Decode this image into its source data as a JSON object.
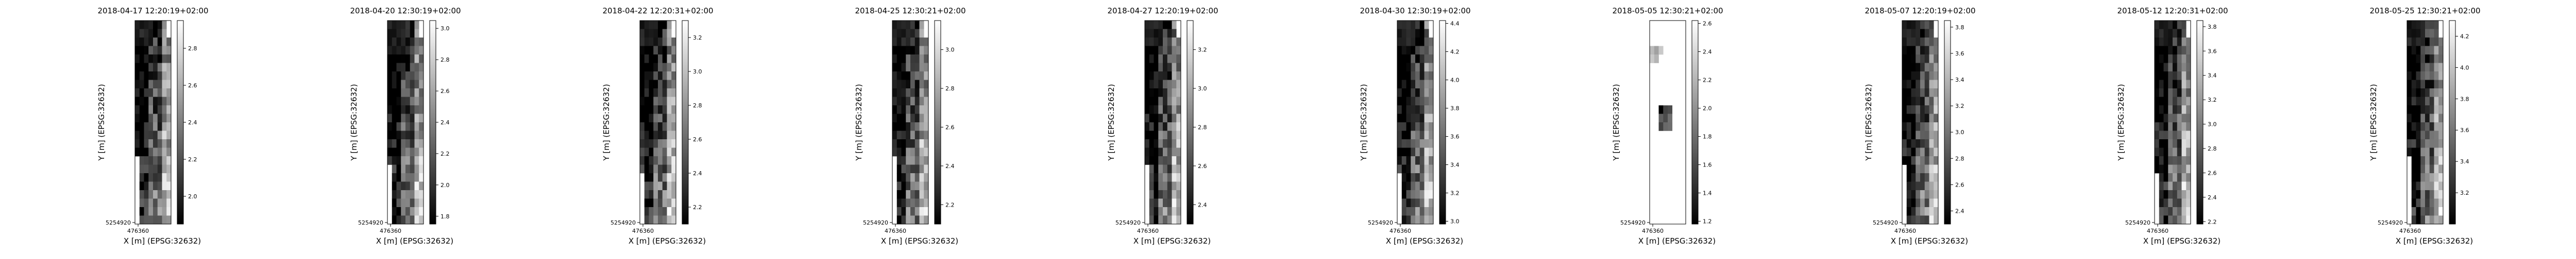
{
  "chart_data": [
    {
      "type": "heatmap",
      "title": "2018-04-17 12:20:19+02:00",
      "xlabel": "X [m] (EPSG:32632)",
      "ylabel": "Y [m] (EPSG:32632)",
      "x_tick": "476360",
      "y_tick": "5254920",
      "colorbar_ticks": [
        2.0,
        2.2,
        2.4,
        2.6,
        2.8
      ],
      "vmin": 1.85,
      "vmax": 2.95,
      "colormap": "gray"
    },
    {
      "type": "heatmap",
      "title": "2018-04-20 12:30:19+02:00",
      "xlabel": "X [m] (EPSG:32632)",
      "ylabel": "Y [m] (EPSG:32632)",
      "x_tick": "476360",
      "y_tick": "5254920",
      "colorbar_ticks": [
        1.8,
        2.0,
        2.2,
        2.4,
        2.6,
        2.8,
        3.0
      ],
      "vmin": 1.75,
      "vmax": 3.05,
      "colormap": "gray"
    },
    {
      "type": "heatmap",
      "title": "2018-04-22 12:20:31+02:00",
      "xlabel": "X [m] (EPSG:32632)",
      "ylabel": "Y [m] (EPSG:32632)",
      "x_tick": "476360",
      "y_tick": "5254920",
      "colorbar_ticks": [
        2.2,
        2.4,
        2.6,
        2.8,
        3.0,
        3.2
      ],
      "vmin": 2.1,
      "vmax": 3.3,
      "colormap": "gray"
    },
    {
      "type": "heatmap",
      "title": "2018-04-25 12:30:21+02:00",
      "xlabel": "X [m] (EPSG:32632)",
      "ylabel": "Y [m] (EPSG:32632)",
      "x_tick": "476360",
      "y_tick": "5254920",
      "colorbar_ticks": [
        2.2,
        2.4,
        2.6,
        2.8,
        3.0
      ],
      "vmin": 2.1,
      "vmax": 3.15,
      "colormap": "gray"
    },
    {
      "type": "heatmap",
      "title": "2018-04-27 12:20:19+02:00",
      "xlabel": "X [m] (EPSG:32632)",
      "ylabel": "Y [m] (EPSG:32632)",
      "x_tick": "476360",
      "y_tick": "5254920",
      "colorbar_ticks": [
        2.4,
        2.6,
        2.8,
        3.0,
        3.2
      ],
      "vmin": 2.3,
      "vmax": 3.35,
      "colormap": "gray"
    },
    {
      "type": "heatmap",
      "title": "2018-04-30 12:30:19+02:00",
      "xlabel": "X [m] (EPSG:32632)",
      "ylabel": "Y [m] (EPSG:32632)",
      "x_tick": "476360",
      "y_tick": "5254920",
      "colorbar_ticks": [
        3.0,
        3.2,
        3.4,
        3.6,
        3.8,
        4.0,
        4.2,
        4.4
      ],
      "vmin": 2.98,
      "vmax": 4.42,
      "colormap": "gray"
    },
    {
      "type": "heatmap",
      "title": "2018-05-05 12:30:21+02:00",
      "xlabel": "X [m] (EPSG:32632)",
      "ylabel": "Y [m] (EPSG:32632)",
      "x_tick": "476360",
      "y_tick": "5254920",
      "colorbar_ticks": [
        1.2,
        1.4,
        1.6,
        1.8,
        2.0,
        2.2,
        2.4,
        2.6
      ],
      "vmin": 1.18,
      "vmax": 2.62,
      "colormap": "gray"
    },
    {
      "type": "heatmap",
      "title": "2018-05-07 12:20:19+02:00",
      "xlabel": "X [m] (EPSG:32632)",
      "ylabel": "Y [m] (EPSG:32632)",
      "x_tick": "476360",
      "y_tick": "5254920",
      "colorbar_ticks": [
        2.4,
        2.6,
        2.8,
        3.0,
        3.2,
        3.4,
        3.6,
        3.8
      ],
      "vmin": 2.3,
      "vmax": 3.85,
      "colormap": "gray"
    },
    {
      "type": "heatmap",
      "title": "2018-05-12 12:20:31+02:00",
      "xlabel": "X [m] (EPSG:32632)",
      "ylabel": "Y [m] (EPSG:32632)",
      "x_tick": "476360",
      "y_tick": "5254920",
      "colorbar_ticks": [
        2.2,
        2.4,
        2.6,
        2.8,
        3.0,
        3.2,
        3.4,
        3.6,
        3.8
      ],
      "vmin": 2.18,
      "vmax": 3.85,
      "colormap": "gray"
    },
    {
      "type": "heatmap",
      "title": "2018-05-25 12:30:21+02:00",
      "xlabel": "X [m] (EPSG:32632)",
      "ylabel": "Y [m] (EPSG:32632)",
      "x_tick": "476360",
      "y_tick": "5254920",
      "colorbar_ticks": [
        3.2,
        3.4,
        3.6,
        3.8,
        4.0,
        4.2
      ],
      "vmin": 3.0,
      "vmax": 4.3,
      "colormap": "gray"
    }
  ]
}
